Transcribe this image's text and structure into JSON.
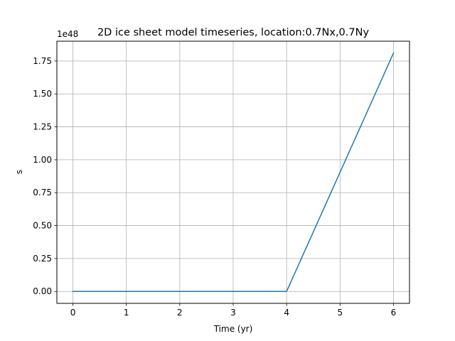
{
  "chart_data": {
    "type": "line",
    "title": "2D ice sheet model timeseries, location:0.7Nx,0.7Ny",
    "xlabel": "Time (yr)",
    "ylabel": "s",
    "offset_label": "1e48",
    "x": [
      0,
      1,
      2,
      3,
      4,
      5,
      6
    ],
    "series": [
      {
        "values": [
          0,
          0,
          0,
          0,
          0,
          0.905,
          1.81
        ],
        "color": "#1f77b4"
      }
    ],
    "xlim": [
      -0.3,
      6.3
    ],
    "ylim": [
      -0.0905,
      1.9005
    ],
    "xticks": [
      0,
      1,
      2,
      3,
      4,
      5,
      6
    ],
    "xtick_labels": [
      "0",
      "1",
      "2",
      "3",
      "4",
      "5",
      "6"
    ],
    "yticks": [
      0,
      0.25,
      0.5,
      0.75,
      1.0,
      1.25,
      1.5,
      1.75
    ],
    "ytick_labels": [
      "0.00",
      "0.25",
      "0.50",
      "0.75",
      "1.00",
      "1.25",
      "1.50",
      "1.75"
    ],
    "grid": true,
    "grid_color": "#b0b0b0",
    "axis_color": "#000000"
  }
}
